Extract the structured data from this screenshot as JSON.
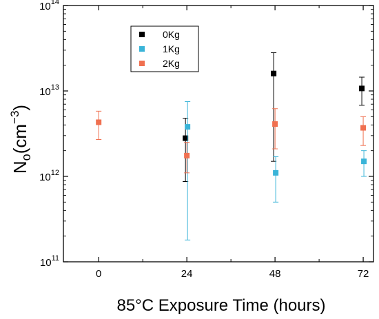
{
  "chart_data": {
    "type": "scatter",
    "title": "",
    "xlabel": "85°C Exposure Time (hours)",
    "ylabel": {
      "base": "N",
      "sub": "o",
      "paren_open": "(cm",
      "sup": "−3",
      "paren_close": ")"
    },
    "xlim": [
      -9.6,
      74.8
    ],
    "x_ticks": [
      0,
      24,
      48,
      72
    ],
    "ylim": [
      100000000000.0,
      100000000000000.0
    ],
    "y_scale": "log",
    "y_ticks": [
      {
        "value": 100000000000.0,
        "base": "10",
        "exp": "11"
      },
      {
        "value": 1000000000000.0,
        "base": "10",
        "exp": "12"
      },
      {
        "value": 10000000000000.0,
        "base": "10",
        "exp": "13"
      },
      {
        "value": 100000000000000.0,
        "base": "10",
        "exp": "14"
      }
    ],
    "grid": false,
    "legend_position": "top-left",
    "series": [
      {
        "name": "0Kg",
        "color": "#000000",
        "points": [
          {
            "x": 24,
            "y": 2800000000000.0,
            "y_low": 870000000000.0,
            "y_high": 4800000000000.0
          },
          {
            "x": 48,
            "y": 16000000000000.0,
            "y_low": 1500000000000.0,
            "y_high": 28000000000000.0
          },
          {
            "x": 72,
            "y": 10700000000000.0,
            "y_low": 6800000000000.0,
            "y_high": 14500000000000.0
          }
        ]
      },
      {
        "name": "1Kg",
        "color": "#3ab4d8",
        "points": [
          {
            "x": 24,
            "y": 3800000000000.0,
            "y_low": 180000000000.0,
            "y_high": 7500000000000.0
          },
          {
            "x": 48,
            "y": 1100000000000.0,
            "y_low": 500000000000.0,
            "y_high": 1700000000000.0
          },
          {
            "x": 72,
            "y": 1500000000000.0,
            "y_low": 1000000000000.0,
            "y_high": 2000000000000.0
          }
        ]
      },
      {
        "name": "2Kg",
        "color": "#f07050",
        "points": [
          {
            "x": 0,
            "y": 4300000000000.0,
            "y_low": 2700000000000.0,
            "y_high": 5800000000000.0
          },
          {
            "x": 24,
            "y": 1750000000000.0,
            "y_low": 1100000000000.0,
            "y_high": 2500000000000.0
          },
          {
            "x": 48,
            "y": 4100000000000.0,
            "y_low": 2100000000000.0,
            "y_high": 6200000000000.0
          },
          {
            "x": 72,
            "y": 3700000000000.0,
            "y_low": 2300000000000.0,
            "y_high": 5000000000000.0
          }
        ]
      }
    ]
  }
}
